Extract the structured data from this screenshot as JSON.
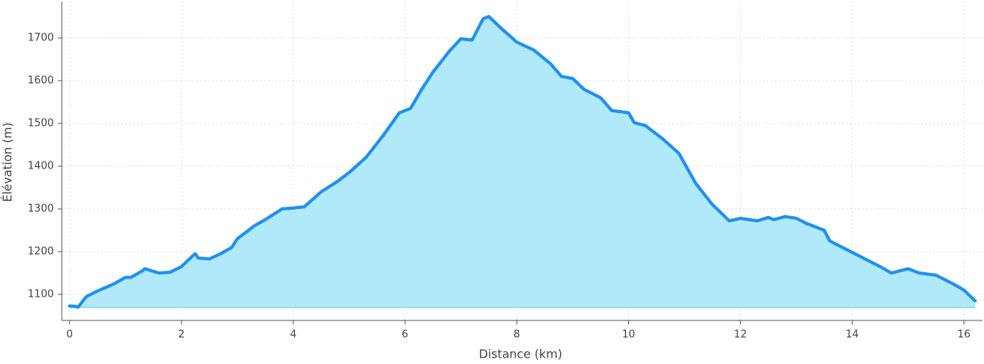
{
  "chart_data": {
    "type": "area",
    "x_label": "Distance (km)",
    "y_label": "Élévation (m)",
    "x": [
      0,
      0.1,
      0.15,
      0.3,
      0.5,
      0.8,
      1.0,
      1.1,
      1.3,
      1.35,
      1.6,
      1.8,
      2.0,
      2.2,
      2.25,
      2.3,
      2.5,
      2.7,
      2.9,
      3.0,
      3.3,
      3.5,
      3.8,
      4.0,
      4.2,
      4.5,
      4.8,
      5.0,
      5.3,
      5.6,
      5.9,
      6.1,
      6.3,
      6.5,
      6.8,
      7.0,
      7.2,
      7.4,
      7.5,
      7.7,
      8.0,
      8.3,
      8.6,
      8.8,
      9.0,
      9.2,
      9.5,
      9.7,
      10.0,
      10.1,
      10.3,
      10.6,
      10.9,
      11.2,
      11.5,
      11.7,
      11.8,
      12.0,
      12.3,
      12.5,
      12.6,
      12.8,
      13.0,
      13.2,
      13.5,
      13.6,
      13.9,
      14.2,
      14.5,
      14.7,
      15.0,
      15.2,
      15.5,
      15.8,
      16.0,
      16.2
    ],
    "series": [
      {
        "name": "Élévation",
        "color": "#2090f0",
        "fill": "#b0eafa",
        "values": [
          1073,
          1072,
          1070,
          1095,
          1108,
          1125,
          1140,
          1140,
          1155,
          1160,
          1150,
          1152,
          1165,
          1190,
          1195,
          1185,
          1183,
          1195,
          1210,
          1230,
          1260,
          1275,
          1300,
          1302,
          1305,
          1340,
          1365,
          1385,
          1420,
          1470,
          1525,
          1535,
          1580,
          1620,
          1670,
          1698,
          1695,
          1745,
          1750,
          1725,
          1690,
          1672,
          1640,
          1610,
          1605,
          1580,
          1560,
          1530,
          1525,
          1502,
          1495,
          1465,
          1430,
          1360,
          1310,
          1285,
          1272,
          1278,
          1272,
          1280,
          1275,
          1282,
          1278,
          1265,
          1250,
          1225,
          1205,
          1185,
          1165,
          1150,
          1160,
          1150,
          1145,
          1125,
          1110,
          1085
        ]
      }
    ],
    "xlim": [
      -0.14,
      16.33
    ],
    "ylim": [
      1039,
      1785
    ],
    "xticks": [
      0,
      2,
      4,
      6,
      8,
      10,
      12,
      14,
      16
    ],
    "yticks": [
      1100,
      1200,
      1300,
      1400,
      1500,
      1600,
      1700
    ],
    "grid": true
  }
}
